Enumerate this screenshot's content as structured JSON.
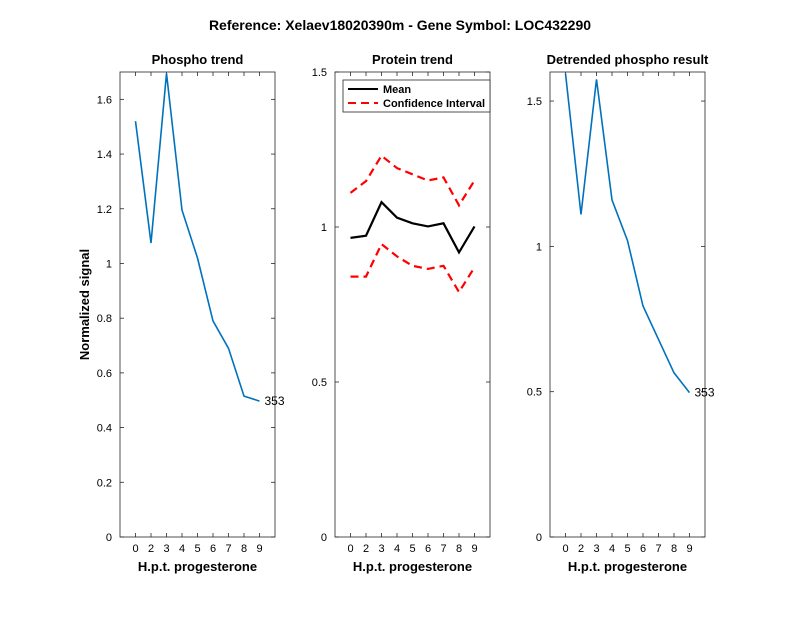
{
  "figure": {
    "title": "Reference:  Xelaev18020390m - Gene Symbol:  LOC432290"
  },
  "chart_data": [
    {
      "type": "line",
      "title": "Phospho trend",
      "xlabel": "H.p.t. progesterone",
      "ylabel": "Normalized signal",
      "categories": [
        "0",
        "2",
        "3",
        "4",
        "5",
        "6",
        "7",
        "8",
        "9"
      ],
      "ylim": [
        0,
        1.7
      ],
      "yticks": [
        0,
        0.2,
        0.4,
        0.6,
        0.8,
        1,
        1.2,
        1.4,
        1.6
      ],
      "ytick_labels": [
        "0",
        "0.2",
        "0.4",
        "0.6",
        "0.8",
        "1",
        "1.2",
        "1.4",
        "1.6"
      ],
      "series": [
        {
          "values": [
            1.52,
            1.075,
            1.695,
            1.195,
            1.02,
            0.79,
            0.69,
            0.515,
            0.497
          ],
          "color": "#0072BD",
          "style": "solid"
        }
      ],
      "annotation": {
        "text": "353",
        "at_index": 8
      },
      "grid": false
    },
    {
      "type": "line",
      "title": "Protein trend",
      "xlabel": "H.p.t. progesterone",
      "ylabel": "",
      "categories": [
        "0",
        "2",
        "3",
        "4",
        "5",
        "6",
        "7",
        "8",
        "9"
      ],
      "ylim": [
        0,
        1.5
      ],
      "yticks": [
        0,
        0.5,
        1,
        1.5
      ],
      "ytick_labels": [
        "0",
        "0.5",
        "1",
        "1.5"
      ],
      "series": [
        {
          "name": "Mean",
          "values": [
            0.965,
            0.972,
            1.08,
            1.03,
            1.012,
            1.002,
            1.012,
            0.918,
            1.002
          ],
          "color": "#000000",
          "style": "solid"
        },
        {
          "name": "Confidence Interval",
          "values": [
            1.11,
            1.148,
            1.23,
            1.19,
            1.17,
            1.15,
            1.16,
            1.07,
            1.15
          ],
          "color": "#FF0000",
          "style": "dashed"
        },
        {
          "values": [
            0.84,
            0.84,
            0.945,
            0.905,
            0.875,
            0.865,
            0.875,
            0.79,
            0.87
          ],
          "color": "#FF0000",
          "style": "dashed"
        }
      ],
      "legend": {
        "placement": "top-left",
        "entries": [
          "Mean",
          "Confidence Interval"
        ]
      },
      "grid": false
    },
    {
      "type": "line",
      "title": "Detrended phospho result",
      "xlabel": "H.p.t. progesterone",
      "ylabel": "",
      "categories": [
        "0",
        "2",
        "3",
        "4",
        "5",
        "6",
        "7",
        "8",
        "9"
      ],
      "ylim": [
        0,
        1.6
      ],
      "yticks": [
        0,
        0.5,
        1,
        1.5
      ],
      "ytick_labels": [
        "0",
        "0.5",
        "1",
        "1.5"
      ],
      "series": [
        {
          "values": [
            1.595,
            1.11,
            1.575,
            1.16,
            1.02,
            0.795,
            0.68,
            0.565,
            0.497
          ],
          "color": "#0072BD",
          "style": "solid"
        }
      ],
      "annotation": {
        "text": "353",
        "at_index": 8
      },
      "grid": false
    }
  ]
}
